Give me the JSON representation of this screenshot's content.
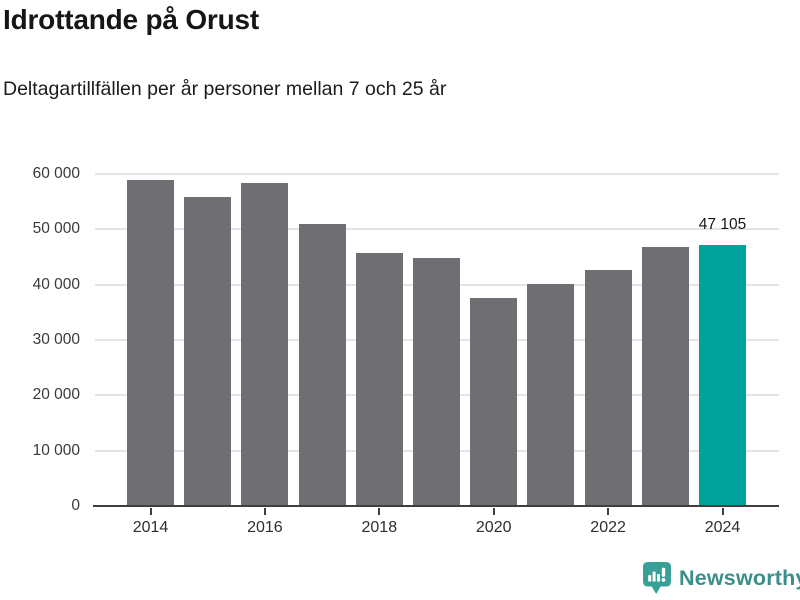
{
  "chart_data": {
    "type": "bar",
    "title": "Idrottande på Orust",
    "subtitle": "Deltagartillfällen per år personer mellan 7 och 25 år",
    "categories": [
      "2014",
      "2015",
      "2016",
      "2017",
      "2018",
      "2019",
      "2020",
      "2021",
      "2022",
      "2023",
      "2024"
    ],
    "values": [
      59000,
      55800,
      58400,
      50900,
      45800,
      44800,
      37600,
      40100,
      42700,
      46800,
      47105
    ],
    "highlight_index": 10,
    "highlight_value_label": "47 105",
    "x_axis_ticks": [
      "2014",
      "2016",
      "2018",
      "2020",
      "2022",
      "2024"
    ],
    "y_axis_ticks": [
      "0",
      "10 000",
      "20 000",
      "30 000",
      "40 000",
      "50 000",
      "60 000"
    ],
    "ylim": [
      0,
      60000
    ],
    "grid": true,
    "legend": null,
    "colors": {
      "bar": "#6e6e73",
      "highlight": "#00a39b",
      "gridline": "#e4e4e4",
      "axis": "#3e3e3e",
      "text": "#161616"
    }
  },
  "footer": {
    "brand": "Newsworthy",
    "brand_text_color": "#3a8f8b",
    "brand_icon_color": "#38a096",
    "icon": "newsworthy-speech-bubble-bar-chart-icon"
  }
}
